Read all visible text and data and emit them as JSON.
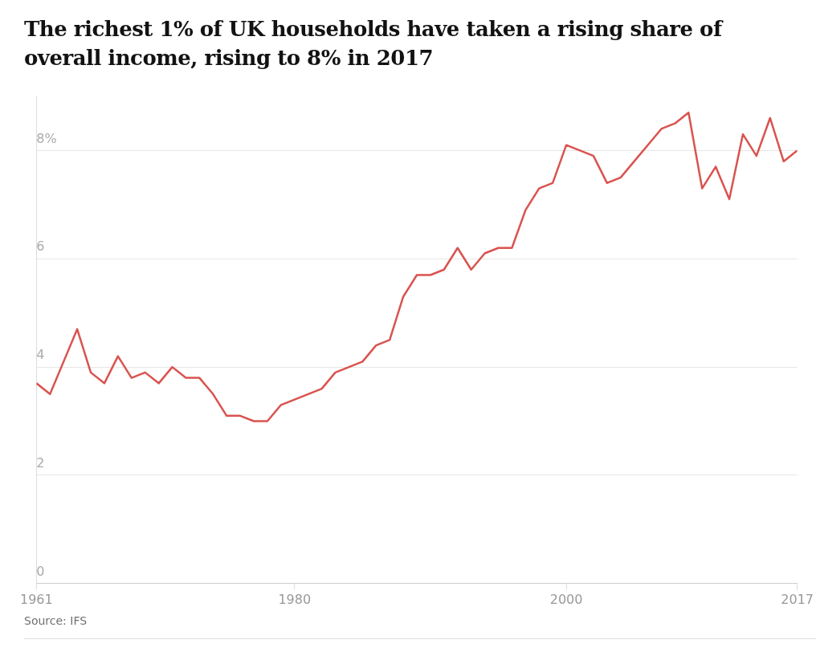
{
  "chart_data": {
    "type": "line",
    "title": "The richest 1% of UK households have taken a rising share of overall income, rising to 8% in 2017",
    "x": [
      1961,
      1962,
      1963,
      1964,
      1965,
      1966,
      1967,
      1968,
      1969,
      1970,
      1971,
      1972,
      1973,
      1974,
      1975,
      1976,
      1977,
      1978,
      1979,
      1980,
      1981,
      1982,
      1983,
      1984,
      1985,
      1986,
      1987,
      1988,
      1989,
      1990,
      1991,
      1992,
      1993,
      1994,
      1995,
      1996,
      1997,
      1998,
      1999,
      2000,
      2001,
      2002,
      2003,
      2004,
      2005,
      2006,
      2007,
      2008,
      2009,
      2010,
      2011,
      2012,
      2013,
      2014,
      2015,
      2016,
      2017
    ],
    "series": [
      {
        "color": "#d9534f",
        "values": [
          3.7,
          3.5,
          4.1,
          4.7,
          3.9,
          3.7,
          4.2,
          3.8,
          3.9,
          3.7,
          4.0,
          3.8,
          3.8,
          3.5,
          3.1,
          3.1,
          3.0,
          3.0,
          3.3,
          3.4,
          3.5,
          3.6,
          3.9,
          4.0,
          4.1,
          4.4,
          4.5,
          5.3,
          5.7,
          5.7,
          5.8,
          6.2,
          5.8,
          6.1,
          6.2,
          6.2,
          6.9,
          7.3,
          7.4,
          8.1,
          8.0,
          7.9,
          7.4,
          7.5,
          7.8,
          8.1,
          8.4,
          8.5,
          8.7,
          7.3,
          7.7,
          7.1,
          8.3,
          7.9,
          8.6,
          7.8,
          8.0
        ]
      }
    ],
    "xlim": [
      1961,
      2017
    ],
    "xticks": [
      1961,
      1980,
      2000,
      2017
    ],
    "ylim": [
      0,
      9
    ],
    "yticks": [
      0,
      2,
      4,
      {
        "value": 6,
        "label": "6"
      },
      {
        "value": 8,
        "label": "8%"
      }
    ],
    "grid": "y",
    "legend": false,
    "marker": "none",
    "line_style": "solid",
    "annotations": [
      "Source: IFS"
    ]
  }
}
